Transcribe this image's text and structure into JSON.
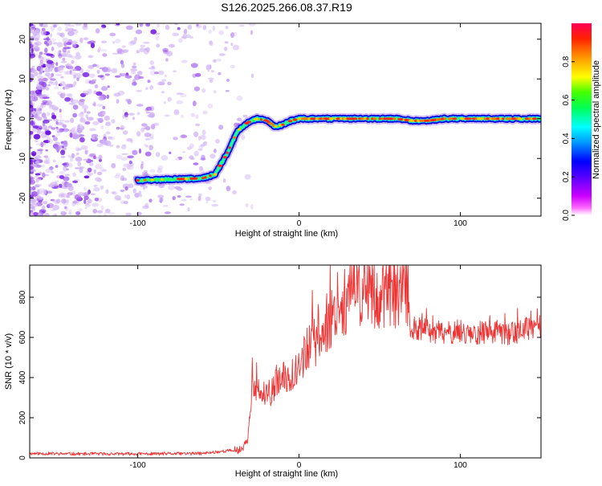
{
  "title": "S126.2025.266.08.37.R19",
  "chart_data": [
    {
      "type": "heatmap",
      "title": "S126.2025.266.08.37.R19",
      "xlabel": "Height of straight line (km)",
      "ylabel": "Frequency (Hz)",
      "xlim": [
        -167,
        150
      ],
      "ylim": [
        -24.5,
        24
      ],
      "xticks": [
        -100,
        0,
        100
      ],
      "yticks": [
        -20,
        -10,
        0,
        10,
        20
      ],
      "colorbar": {
        "label": "Normalized spectral amplitude",
        "range": [
          0,
          1
        ],
        "ticks": [
          0.0,
          0.2,
          0.4,
          0.6,
          0.8
        ],
        "colors": [
          "#ffffff",
          "#ff00ff",
          "#8800ff",
          "#0000ff",
          "#00aaff",
          "#00ffff",
          "#00ff44",
          "#66ff00",
          "#ffff00",
          "#ff8800",
          "#ff0000"
        ]
      },
      "signal_track": {
        "x": [
          -100,
          -60,
          -52,
          -45,
          -38,
          -32,
          -26,
          -20,
          -15,
          -10,
          -5,
          0,
          10,
          40,
          60,
          70,
          80,
          90,
          100,
          150
        ],
        "y": [
          -15.5,
          -15,
          -14,
          -9,
          -3,
          -1,
          0,
          -0.5,
          -2,
          -1.5,
          -0.5,
          0,
          0,
          0,
          0,
          -0.5,
          -0.5,
          0,
          0,
          0
        ]
      },
      "noise_region_x": [
        -167,
        -50
      ]
    },
    {
      "type": "line",
      "xlabel": "Height of straight line (km)",
      "ylabel": "SNR (10 * v/v)",
      "xlim": [
        -167,
        150
      ],
      "ylim": [
        0,
        960
      ],
      "xticks": [
        -100,
        0,
        100
      ],
      "yticks": [
        0,
        200,
        400,
        600,
        800
      ],
      "series": [
        {
          "name": "SNR",
          "color": "#ee3333",
          "x": [
            -167,
            -140,
            -100,
            -60,
            -45,
            -36,
            -32,
            -30,
            -29,
            -28,
            -25,
            -20,
            -15,
            -10,
            -5,
            0,
            5,
            10,
            15,
            20,
            25,
            30,
            35,
            40,
            45,
            50,
            55,
            60,
            65,
            68,
            69,
            70,
            80,
            90,
            100,
            110,
            120,
            130,
            140,
            150
          ],
          "y": [
            22,
            20,
            20,
            22,
            35,
            40,
            90,
            250,
            420,
            320,
            330,
            300,
            360,
            390,
            420,
            460,
            540,
            580,
            630,
            700,
            760,
            790,
            820,
            840,
            830,
            800,
            840,
            810,
            820,
            840,
            560,
            650,
            630,
            620,
            630,
            620,
            630,
            620,
            640,
            650
          ]
        }
      ]
    }
  ]
}
